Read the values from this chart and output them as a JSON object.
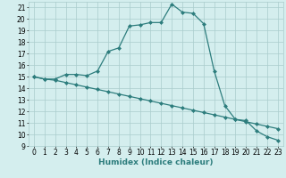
{
  "title": "",
  "xlabel": "Humidex (Indice chaleur)",
  "xlim": [
    -0.5,
    23.5
  ],
  "ylim": [
    9,
    21.5
  ],
  "yticks": [
    9,
    10,
    11,
    12,
    13,
    14,
    15,
    16,
    17,
    18,
    19,
    20,
    21
  ],
  "xticks": [
    0,
    1,
    2,
    3,
    4,
    5,
    6,
    7,
    8,
    9,
    10,
    11,
    12,
    13,
    14,
    15,
    16,
    17,
    18,
    19,
    20,
    21,
    22,
    23
  ],
  "line1_x": [
    0,
    1,
    2,
    3,
    4,
    5,
    6,
    7,
    8,
    9,
    10,
    11,
    12,
    13,
    14,
    15,
    16,
    17,
    18,
    19,
    20,
    21,
    22,
    23
  ],
  "line1_y": [
    15.0,
    14.8,
    14.8,
    15.2,
    15.2,
    15.1,
    15.5,
    17.2,
    17.5,
    19.4,
    19.5,
    19.7,
    19.7,
    21.3,
    20.6,
    20.5,
    19.6,
    15.5,
    12.5,
    11.3,
    11.2,
    10.3,
    9.8,
    9.5
  ],
  "line2_x": [
    0,
    1,
    2,
    3,
    4,
    5,
    6,
    7,
    8,
    9,
    10,
    11,
    12,
    13,
    14,
    15,
    16,
    17,
    18,
    19,
    20,
    21,
    22,
    23
  ],
  "line2_y": [
    15.0,
    14.8,
    14.7,
    14.5,
    14.3,
    14.1,
    13.9,
    13.7,
    13.5,
    13.3,
    13.1,
    12.9,
    12.7,
    12.5,
    12.3,
    12.1,
    11.9,
    11.7,
    11.5,
    11.3,
    11.1,
    10.9,
    10.7,
    10.5
  ],
  "line_color": "#2d7d7d",
  "bg_color": "#d4eeee",
  "grid_color": "#aacccc",
  "marker": "D",
  "marker_size": 2.0,
  "linewidth": 0.9,
  "xlabel_fontsize": 6.5,
  "tick_fontsize": 5.5
}
